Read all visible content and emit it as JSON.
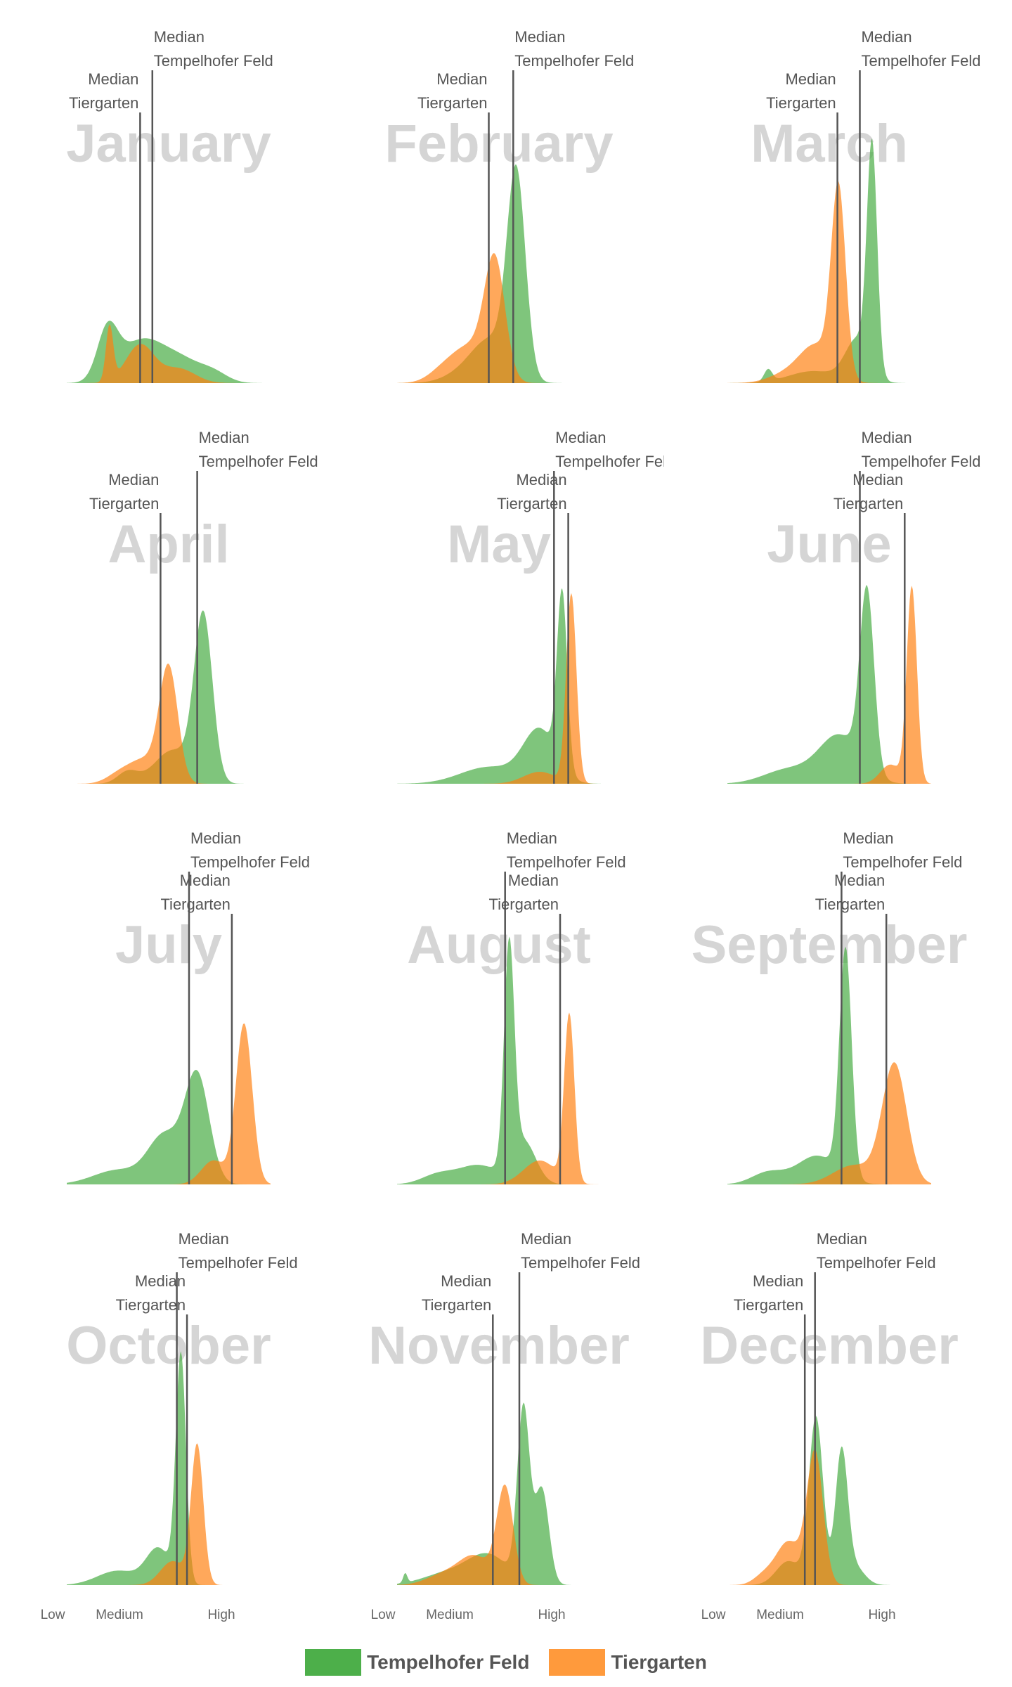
{
  "chart_data": {
    "type": "area",
    "layout": "small-multiples",
    "xaxis": {
      "ticks": [
        "Low",
        "Medium",
        "High"
      ],
      "range": [
        0,
        1
      ]
    },
    "series": [
      {
        "name": "Tempelhofer Feld",
        "color": "#4daf4a"
      },
      {
        "name": "Tiergarten",
        "color": "#ff7f0e"
      }
    ],
    "median_label_top": "Median",
    "panels": [
      {
        "title": "January",
        "tempelhofer": {
          "median": 0.42,
          "peaks": [
            [
              0.2,
              0.05,
              0.2
            ],
            [
              0.33,
              0.1,
              0.12
            ],
            [
              0.44,
              0.1,
              0.09
            ],
            [
              0.58,
              0.09,
              0.07
            ],
            [
              0.72,
              0.07,
              0.04
            ]
          ]
        },
        "tiergarten": {
          "median": 0.36,
          "peaks": [
            [
              0.21,
              0.018,
              0.23
            ],
            [
              0.36,
              0.07,
              0.16
            ],
            [
              0.55,
              0.08,
              0.06
            ]
          ]
        }
      },
      {
        "title": "February",
        "tempelhofer": {
          "median": 0.57,
          "peaks": [
            [
              0.585,
              0.045,
              0.84
            ],
            [
              0.47,
              0.09,
              0.16
            ],
            [
              0.35,
              0.1,
              0.05
            ]
          ]
        },
        "tiergarten": {
          "median": 0.45,
          "peaks": [
            [
              0.48,
              0.05,
              0.48
            ],
            [
              0.36,
              0.09,
              0.15
            ],
            [
              0.22,
              0.07,
              0.04
            ]
          ]
        }
      },
      {
        "title": "March",
        "tempelhofer": {
          "median": 0.65,
          "peaks": [
            [
              0.71,
              0.025,
              0.93
            ],
            [
              0.64,
              0.06,
              0.18
            ],
            [
              0.42,
              0.12,
              0.05
            ],
            [
              0.2,
              0.02,
              0.05
            ]
          ]
        },
        "tiergarten": {
          "median": 0.54,
          "peaks": [
            [
              0.545,
              0.035,
              0.78
            ],
            [
              0.44,
              0.08,
              0.15
            ],
            [
              0.3,
              0.09,
              0.04
            ]
          ]
        }
      },
      {
        "title": "April",
        "tempelhofer": {
          "median": 0.64,
          "peaks": [
            [
              0.67,
              0.045,
              0.69
            ],
            [
              0.52,
              0.09,
              0.14
            ],
            [
              0.3,
              0.05,
              0.05
            ]
          ]
        },
        "tiergarten": {
          "median": 0.46,
          "peaks": [
            [
              0.5,
              0.045,
              0.47
            ],
            [
              0.38,
              0.08,
              0.1
            ],
            [
              0.25,
              0.06,
              0.03
            ]
          ]
        }
      },
      {
        "title": "May",
        "tempelhofer": {
          "median": 0.77,
          "peaks": [
            [
              0.81,
              0.025,
              0.73
            ],
            [
              0.7,
              0.08,
              0.22
            ],
            [
              0.45,
              0.14,
              0.07
            ]
          ]
        },
        "tiergarten": {
          "median": 0.84,
          "peaks": [
            [
              0.855,
              0.025,
              0.79
            ],
            [
              0.7,
              0.08,
              0.05
            ]
          ]
        }
      },
      {
        "title": "June",
        "tempelhofer": {
          "median": 0.65,
          "peaks": [
            [
              0.685,
              0.035,
              0.75
            ],
            [
              0.55,
              0.1,
              0.2
            ],
            [
              0.3,
              0.12,
              0.06
            ]
          ]
        },
        "tiergarten": {
          "median": 0.87,
          "peaks": [
            [
              0.905,
              0.025,
              0.82
            ],
            [
              0.8,
              0.05,
              0.08
            ]
          ]
        }
      },
      {
        "title": "July",
        "tempelhofer": {
          "median": 0.6,
          "peaks": [
            [
              0.64,
              0.06,
              0.45
            ],
            [
              0.48,
              0.08,
              0.2
            ],
            [
              0.25,
              0.12,
              0.06
            ]
          ]
        },
        "tiergarten": {
          "median": 0.81,
          "peaks": [
            [
              0.87,
              0.04,
              0.67
            ],
            [
              0.72,
              0.06,
              0.1
            ]
          ]
        }
      },
      {
        "title": "August",
        "tempelhofer": {
          "median": 0.53,
          "peaks": [
            [
              0.55,
              0.025,
              0.92
            ],
            [
              0.62,
              0.06,
              0.18
            ],
            [
              0.4,
              0.1,
              0.08
            ],
            [
              0.2,
              0.08,
              0.04
            ]
          ]
        },
        "tiergarten": {
          "median": 0.8,
          "peaks": [
            [
              0.845,
              0.025,
              0.7
            ],
            [
              0.7,
              0.08,
              0.1
            ]
          ]
        }
      },
      {
        "title": "September",
        "tempelhofer": {
          "median": 0.56,
          "peaks": [
            [
              0.58,
              0.03,
              0.95
            ],
            [
              0.44,
              0.1,
              0.12
            ],
            [
              0.2,
              0.08,
              0.05
            ]
          ]
        },
        "tiergarten": {
          "median": 0.78,
          "peaks": [
            [
              0.82,
              0.06,
              0.5
            ],
            [
              0.62,
              0.1,
              0.08
            ]
          ]
        }
      },
      {
        "title": "October",
        "tempelhofer": {
          "median": 0.54,
          "peaks": [
            [
              0.56,
              0.025,
              0.95
            ],
            [
              0.45,
              0.06,
              0.15
            ],
            [
              0.25,
              0.1,
              0.06
            ]
          ]
        },
        "tiergarten": {
          "median": 0.59,
          "peaks": [
            [
              0.64,
              0.03,
              0.58
            ],
            [
              0.52,
              0.06,
              0.1
            ]
          ]
        }
      },
      {
        "title": "November",
        "tempelhofer": {
          "median": 0.6,
          "peaks": [
            [
              0.62,
              0.03,
              0.72
            ],
            [
              0.71,
              0.035,
              0.4
            ],
            [
              0.45,
              0.1,
              0.12
            ],
            [
              0.25,
              0.12,
              0.05
            ],
            [
              0.04,
              0.01,
              0.04
            ]
          ]
        },
        "tiergarten": {
          "median": 0.47,
          "peaks": [
            [
              0.53,
              0.04,
              0.4
            ],
            [
              0.38,
              0.08,
              0.12
            ],
            [
              0.22,
              0.08,
              0.04
            ]
          ]
        }
      },
      {
        "title": "December",
        "tempelhofer": {
          "median": 0.43,
          "peaks": [
            [
              0.435,
              0.035,
              0.7
            ],
            [
              0.56,
              0.03,
              0.54
            ],
            [
              0.3,
              0.06,
              0.1
            ],
            [
              0.62,
              0.05,
              0.08
            ]
          ]
        },
        "tiergarten": {
          "median": 0.38,
          "peaks": [
            [
              0.43,
              0.04,
              0.55
            ],
            [
              0.3,
              0.06,
              0.18
            ],
            [
              0.18,
              0.05,
              0.04
            ]
          ]
        }
      }
    ]
  }
}
